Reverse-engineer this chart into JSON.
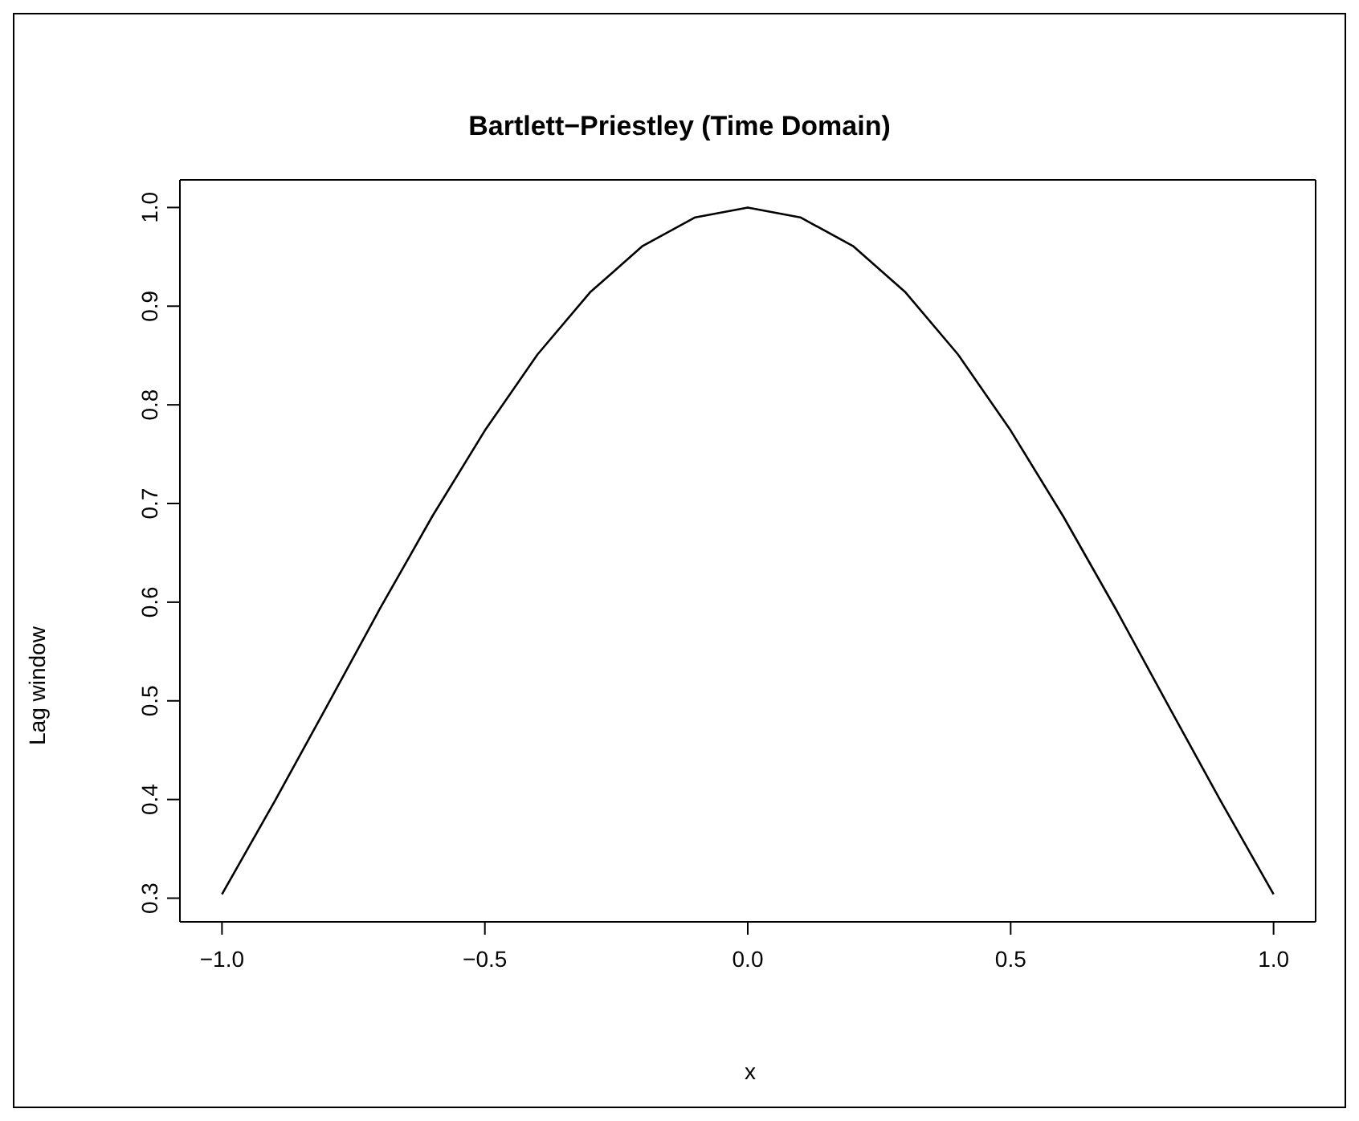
{
  "chart_data": {
    "type": "line",
    "title": "Bartlett−Priestley (Time Domain)",
    "xlabel": "x",
    "ylabel": "Lag window",
    "x": [
      -1,
      -0.9,
      -0.8,
      -0.7,
      -0.6,
      -0.5,
      -0.4,
      -0.3,
      -0.2,
      -0.1,
      0,
      0.1,
      0.2,
      0.3,
      0.4,
      0.5,
      0.6,
      0.7,
      0.8,
      0.9,
      1
    ],
    "series": [
      {
        "color": "#000000",
        "values": [
          0.304,
          0.398,
          0.495,
          0.593,
          0.687,
          0.774,
          0.851,
          0.914,
          0.961,
          0.99,
          1.0,
          0.99,
          0.961,
          0.914,
          0.851,
          0.774,
          0.687,
          0.593,
          0.495,
          0.398,
          0.304
        ]
      }
    ],
    "xlim": [
      -1.08,
      1.08
    ],
    "ylim": [
      0.276,
      1.028
    ],
    "xticks": [
      {
        "value": -1,
        "label": "−1.0"
      },
      {
        "value": -0.5,
        "label": "−0.5"
      },
      {
        "value": 0,
        "label": "0.0"
      },
      {
        "value": 0.5,
        "label": "0.5"
      },
      {
        "value": 1,
        "label": "1.0"
      }
    ],
    "yticks": [
      {
        "value": 0.3,
        "label": "0.3"
      },
      {
        "value": 0.4,
        "label": "0.4"
      },
      {
        "value": 0.5,
        "label": "0.5"
      },
      {
        "value": 0.6,
        "label": "0.6"
      },
      {
        "value": 0.7,
        "label": "0.7"
      },
      {
        "value": 0.8,
        "label": "0.8"
      },
      {
        "value": 0.9,
        "label": "0.9"
      },
      {
        "value": 1,
        "label": "1.0"
      }
    ],
    "grid": false,
    "legend": false,
    "marker": "none",
    "line_style": "solid"
  }
}
